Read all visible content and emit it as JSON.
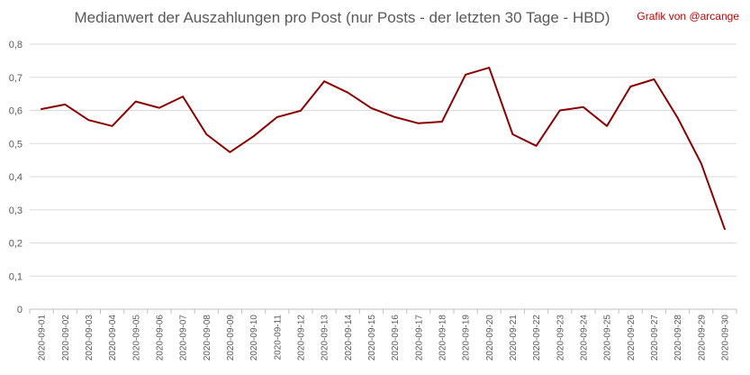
{
  "credit": "Grafik von @arcange",
  "chart_data": {
    "type": "line",
    "title": "Medianwert der Auszahlungen pro Post (nur Posts - der letzten 30 Tage - HBD)",
    "xlabel": "",
    "ylabel": "",
    "ylim": [
      0,
      0.8
    ],
    "yticks": [
      "0",
      "0,1",
      "0,2",
      "0,3",
      "0,4",
      "0,5",
      "0,6",
      "0,7",
      "0,8"
    ],
    "ytick_values": [
      0,
      0.1,
      0.2,
      0.3,
      0.4,
      0.5,
      0.6,
      0.7,
      0.8
    ],
    "grid": true,
    "legend": "none",
    "categories": [
      "2020-09-01",
      "2020-09-02",
      "2020-09-03",
      "2020-09-04",
      "2020-09-05",
      "2020-09-06",
      "2020-09-07",
      "2020-09-08",
      "2020-09-09",
      "2020-09-10",
      "2020-09-11",
      "2020-09-12",
      "2020-09-13",
      "2020-09-14",
      "2020-09-15",
      "2020-09-16",
      "2020-09-17",
      "2020-09-18",
      "2020-09-19",
      "2020-09-20",
      "2020-09-21",
      "2020-09-22",
      "2020-09-23",
      "2020-09-24",
      "2020-09-25",
      "2020-09-26",
      "2020-09-27",
      "2020-09-28",
      "2020-09-29",
      "2020-09-30"
    ],
    "series": [
      {
        "color": "#8b0000",
        "values": [
          0.604,
          0.618,
          0.571,
          0.553,
          0.627,
          0.608,
          0.642,
          0.528,
          0.474,
          0.522,
          0.58,
          0.599,
          0.688,
          0.654,
          0.607,
          0.58,
          0.561,
          0.566,
          0.708,
          0.729,
          0.528,
          0.493,
          0.6,
          0.61,
          0.553,
          0.672,
          0.694,
          0.578,
          0.44,
          0.242
        ]
      }
    ]
  }
}
